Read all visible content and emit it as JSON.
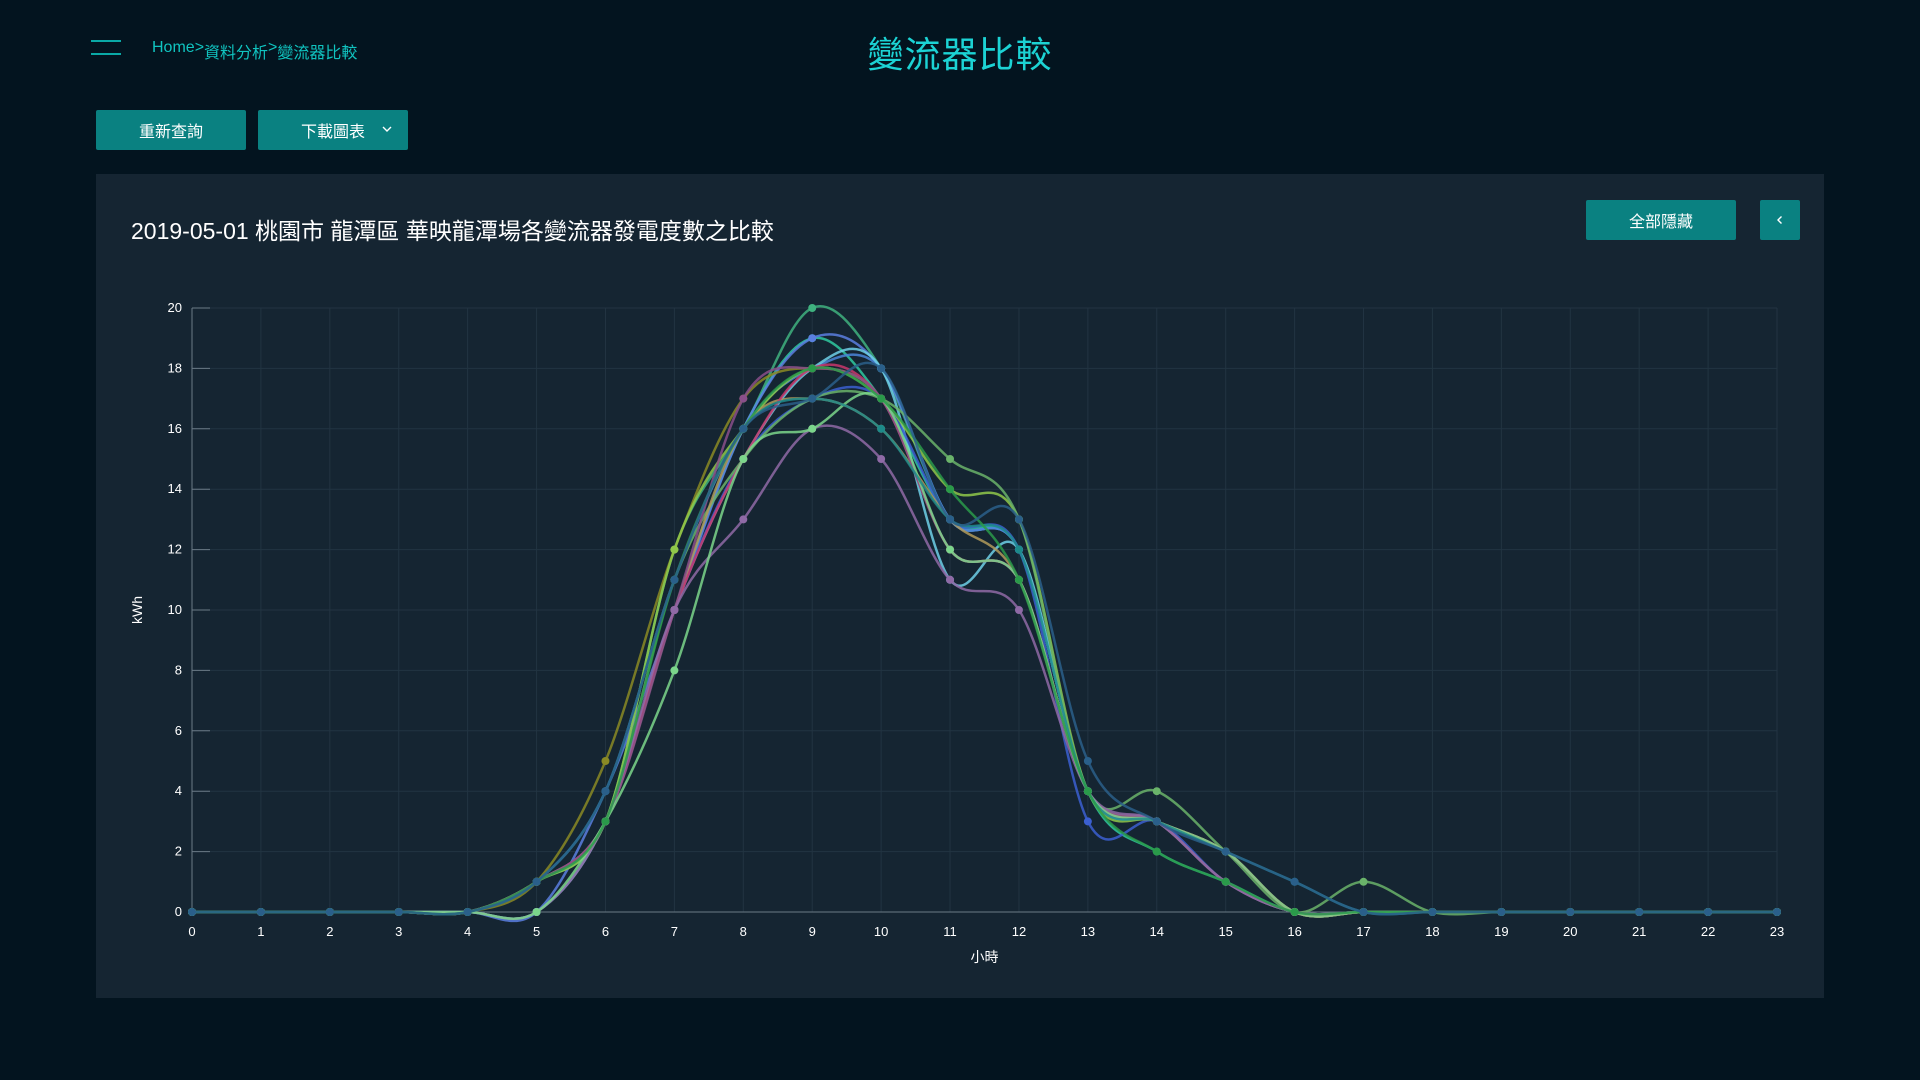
{
  "header": {
    "menu_icon": "hamburger-menu-icon",
    "breadcrumb": [
      "Home",
      "資料分析",
      "變流器比較"
    ],
    "breadcrumb_separator": ">",
    "title": "變流器比較"
  },
  "toolbar": {
    "refresh_label": "重新查詢",
    "download_label": "下載圖表",
    "download_icon": "chevron-down-icon"
  },
  "panel": {
    "hide_all_label": "全部隱藏",
    "collapse_icon": "chevron-left-icon"
  },
  "colors": {
    "background": "#03141f",
    "panel": "#152532",
    "accent": "#0a8181",
    "title": "#1cd3d4"
  },
  "chart_data": {
    "type": "line",
    "title": "2019-05-01 桃園市 龍潭區 華映龍潭場各變流器發電度數之比較",
    "xlabel": "小時",
    "ylabel": "kWh",
    "xlim": [
      0,
      23
    ],
    "ylim": [
      0,
      20
    ],
    "x": [
      0,
      1,
      2,
      3,
      4,
      5,
      6,
      7,
      8,
      9,
      10,
      11,
      12,
      13,
      14,
      15,
      16,
      17,
      18,
      19,
      20,
      21,
      22,
      23
    ],
    "yticks": [
      0,
      2,
      4,
      6,
      8,
      10,
      12,
      14,
      16,
      18,
      20
    ],
    "grid": true,
    "legend": "none",
    "series": [
      {
        "color": "#3fb27f",
        "values": [
          0,
          0,
          0,
          0,
          0,
          1,
          3,
          12,
          16,
          20,
          18,
          13,
          12,
          4,
          3,
          2,
          0,
          0,
          0,
          0,
          0,
          0,
          0,
          0
        ]
      },
      {
        "color": "#2fc9a0",
        "values": [
          0,
          0,
          0,
          0,
          0,
          1,
          3,
          10,
          16,
          19,
          17,
          13,
          12,
          4,
          2,
          1,
          0,
          0,
          0,
          0,
          0,
          0,
          0,
          0
        ]
      },
      {
        "color": "#5b7fe0",
        "values": [
          0,
          0,
          0,
          0,
          0,
          0,
          4,
          10,
          16,
          19,
          18,
          13,
          12,
          4,
          3,
          1,
          0,
          0,
          0,
          0,
          0,
          0,
          0,
          0
        ]
      },
      {
        "color": "#4a86d8",
        "values": [
          0,
          0,
          0,
          0,
          0,
          1,
          4,
          11,
          16,
          18,
          18,
          13,
          12,
          4,
          3,
          2,
          0,
          0,
          0,
          0,
          0,
          0,
          0,
          0
        ]
      },
      {
        "color": "#6fd0e8",
        "values": [
          0,
          0,
          0,
          0,
          0,
          0,
          3,
          10,
          15,
          18,
          18,
          11,
          12,
          4,
          3,
          2,
          0,
          0,
          0,
          0,
          0,
          0,
          0,
          0
        ]
      },
      {
        "color": "#3b5fd0",
        "values": [
          0,
          0,
          0,
          0,
          0,
          1,
          3,
          10,
          15,
          17,
          17,
          13,
          12,
          3,
          3,
          1,
          0,
          0,
          0,
          0,
          0,
          0,
          0,
          0
        ]
      },
      {
        "color": "#8a8a25",
        "values": [
          0,
          0,
          0,
          0,
          0,
          1,
          5,
          12,
          17,
          18,
          17,
          12,
          11,
          4,
          3,
          2,
          0,
          0,
          0,
          0,
          0,
          0,
          0,
          0
        ]
      },
      {
        "color": "#8fc84a",
        "values": [
          0,
          0,
          0,
          0,
          0,
          1,
          3,
          12,
          16,
          18,
          17,
          14,
          13,
          4,
          3,
          2,
          0,
          0,
          0,
          0,
          0,
          0,
          0,
          0
        ]
      },
      {
        "color": "#6ab36a",
        "values": [
          0,
          0,
          0,
          0,
          0,
          1,
          3,
          11,
          15,
          17,
          17,
          15,
          13,
          4,
          4,
          2,
          0,
          1,
          0,
          0,
          0,
          0,
          0,
          0
        ]
      },
      {
        "color": "#b09a5a",
        "values": [
          0,
          0,
          0,
          0,
          0,
          1,
          3,
          10,
          16,
          17,
          16,
          13,
          11,
          4,
          3,
          1,
          0,
          0,
          0,
          0,
          0,
          0,
          0,
          0
        ]
      },
      {
        "color": "#c8366b",
        "values": [
          0,
          0,
          0,
          0,
          0,
          1,
          3,
          10,
          15,
          18,
          17,
          12,
          11,
          4,
          3,
          2,
          0,
          0,
          0,
          0,
          0,
          0,
          0,
          0
        ]
      },
      {
        "color": "#8a4f8a",
        "values": [
          0,
          0,
          0,
          0,
          0,
          1,
          3,
          10,
          17,
          18,
          17,
          12,
          11,
          4,
          3,
          1,
          0,
          0,
          0,
          0,
          0,
          0,
          0,
          0
        ]
      },
      {
        "color": "#8f6aa6",
        "values": [
          0,
          0,
          0,
          0,
          0,
          0,
          3,
          10,
          13,
          16,
          15,
          11,
          10,
          4,
          3,
          1,
          0,
          0,
          0,
          0,
          0,
          0,
          0,
          0
        ]
      },
      {
        "color": "#7bd68b",
        "values": [
          0,
          0,
          0,
          0,
          0,
          0,
          3,
          8,
          15,
          16,
          17,
          12,
          11,
          4,
          3,
          2,
          0,
          0,
          0,
          0,
          0,
          0,
          0,
          0
        ]
      },
      {
        "color": "#1d8a8a",
        "values": [
          0,
          0,
          0,
          0,
          0,
          1,
          4,
          11,
          16,
          17,
          16,
          13,
          12,
          4,
          3,
          2,
          1,
          0,
          0,
          0,
          0,
          0,
          0,
          0
        ]
      },
      {
        "color": "#2a9a4a",
        "values": [
          0,
          0,
          0,
          0,
          0,
          1,
          3,
          11,
          16,
          18,
          17,
          14,
          11,
          4,
          2,
          1,
          0,
          0,
          0,
          0,
          0,
          0,
          0,
          0
        ]
      },
      {
        "color": "#2a5f8a",
        "values": [
          0,
          0,
          0,
          0,
          0,
          1,
          4,
          11,
          16,
          17,
          18,
          13,
          13,
          5,
          3,
          2,
          1,
          0,
          0,
          0,
          0,
          0,
          0,
          0
        ]
      }
    ]
  }
}
